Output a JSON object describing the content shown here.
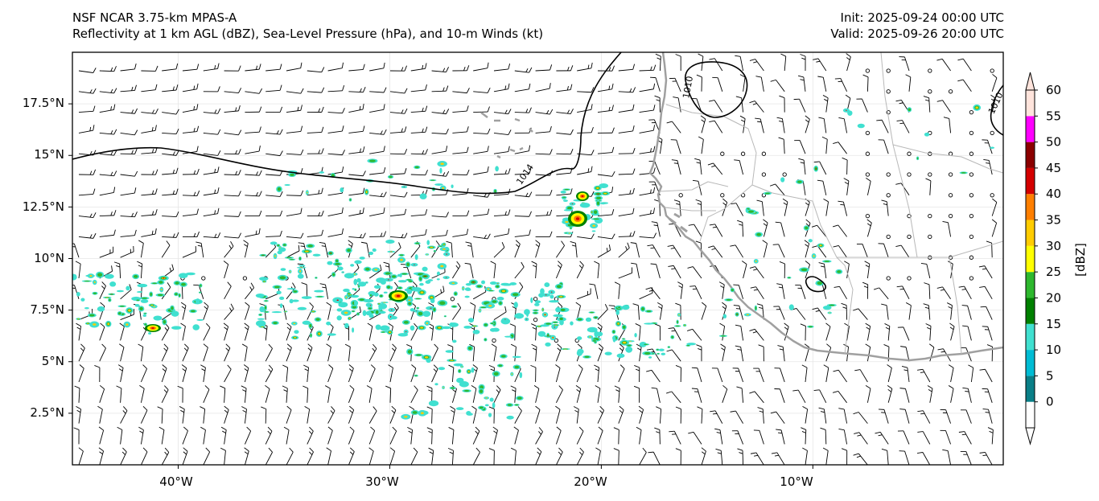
{
  "header": {
    "model": "NSF NCAR 3.75-km MPAS-A",
    "fields": "Reflectivity at 1 km AGL (dBZ), Sea-Level Pressure (hPa), and 10-m Winds (kt)",
    "init": "Init: 2025-09-24 00:00 UTC",
    "valid": "Valid: 2025-09-26 20:00 UTC"
  },
  "map": {
    "lon_range": [
      -45,
      -1
    ],
    "lat_range": [
      0,
      20
    ],
    "lat_ticks": [
      {
        "value": 2.5,
        "label": "2.5°N"
      },
      {
        "value": 5,
        "label": "5°N"
      },
      {
        "value": 7.5,
        "label": "7.5°N"
      },
      {
        "value": 10,
        "label": "10°N"
      },
      {
        "value": 12.5,
        "label": "12.5°N"
      },
      {
        "value": 15,
        "label": "15°N"
      },
      {
        "value": 17.5,
        "label": "17.5°N"
      }
    ],
    "lon_ticks": [
      {
        "value": -40,
        "label": "40°W"
      },
      {
        "value": -30,
        "label": "30°W"
      },
      {
        "value": -20,
        "label": "20°W"
      },
      {
        "value": -10,
        "label": "10°W"
      }
    ],
    "isobar_labels": [
      "1014",
      "1010",
      "1010"
    ]
  },
  "colorbar": {
    "unit_label": "[dBZ]",
    "ticks": [
      "0",
      "5",
      "10",
      "15",
      "20",
      "25",
      "30",
      "35",
      "40",
      "45",
      "50",
      "55",
      "60"
    ],
    "colors": [
      "#ffffff",
      "#0a7f87",
      "#00bcd4",
      "#40e0d0",
      "#008000",
      "#2eb82e",
      "#ffff00",
      "#ffcc00",
      "#ff7f00",
      "#d40000",
      "#8b0000",
      "#ff00ff",
      "#ffe4dc"
    ]
  },
  "colors": {
    "coast": "#a0a0a0",
    "isobar": "#000000",
    "barb": "#000000"
  }
}
